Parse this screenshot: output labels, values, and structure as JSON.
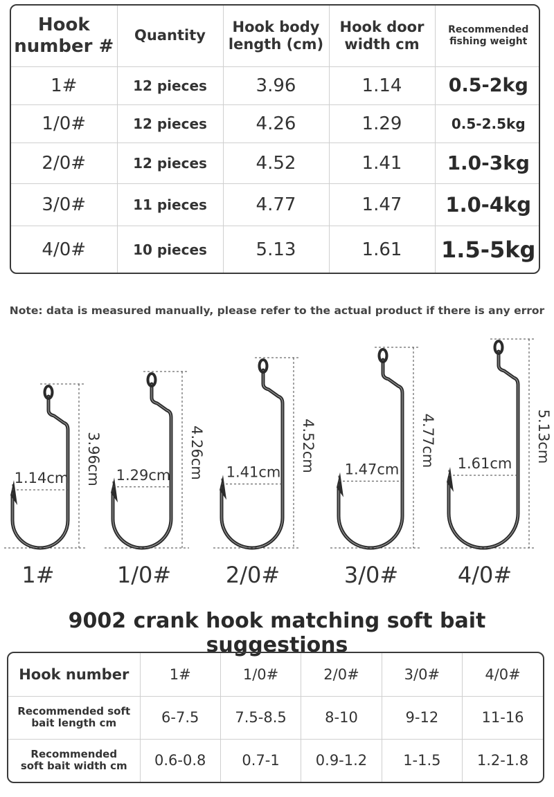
{
  "spec_table": {
    "headers": [
      "Hook\nnumber #",
      "Quantity",
      "Hook body\nlength (cm)",
      "Hook door\nwidth cm",
      "Recommended\nfishing weight"
    ],
    "rows": [
      {
        "hook": "1#",
        "quantity": "12 pieces",
        "body_length": "3.96",
        "door_width": "1.14",
        "weight": "0.5-2kg"
      },
      {
        "hook": "1/0#",
        "quantity": "12 pieces",
        "body_length": "4.26",
        "door_width": "1.29",
        "weight": "0.5-2.5kg"
      },
      {
        "hook": "2/0#",
        "quantity": "12 pieces",
        "body_length": "4.52",
        "door_width": "1.41",
        "weight": "1.0-3kg"
      },
      {
        "hook": "3/0#",
        "quantity": "11 pieces",
        "body_length": "4.77",
        "door_width": "1.47",
        "weight": "1.0-4kg"
      },
      {
        "hook": "4/0#",
        "quantity": "10 pieces",
        "body_length": "5.13",
        "door_width": "1.61",
        "weight": "1.5-5kg"
      }
    ]
  },
  "note": "Note: data is measured manually, please refer to the actual product if there is any error",
  "hooks": [
    {
      "label": "1#",
      "width_text": "1.14cm",
      "length_text": "3.96cm"
    },
    {
      "label": "1/0#",
      "width_text": "1.29cm",
      "length_text": "4.26cm"
    },
    {
      "label": "2/0#",
      "width_text": "1.41cm",
      "length_text": "4.52cm"
    },
    {
      "label": "3/0#",
      "width_text": "1.47cm",
      "length_text": "4.77cm"
    },
    {
      "label": "4/0#",
      "width_text": "1.61cm",
      "length_text": "5.13cm"
    }
  ],
  "title": "9002 crank hook matching soft bait suggestions",
  "bait_table": {
    "header_label": "Hook number",
    "hook_numbers": [
      "1#",
      "1/0#",
      "2/0#",
      "3/0#",
      "4/0#"
    ],
    "rows": [
      {
        "label": "Recommended soft\nbait length cm",
        "values": [
          "6-7.5",
          "7.5-8.5",
          "8-10",
          "9-12",
          "11-16"
        ]
      },
      {
        "label": "Recommended\nsoft bait width cm",
        "values": [
          "0.6-0.8",
          "0.7-1",
          "0.9-1.2",
          "1-1.5",
          "1.2-1.8"
        ]
      }
    ]
  },
  "colors": {
    "border": "#3a3a3a",
    "grid": "#cfcfcf",
    "text": "#2a2a2a",
    "hook_metal": "#2b2b2b"
  }
}
